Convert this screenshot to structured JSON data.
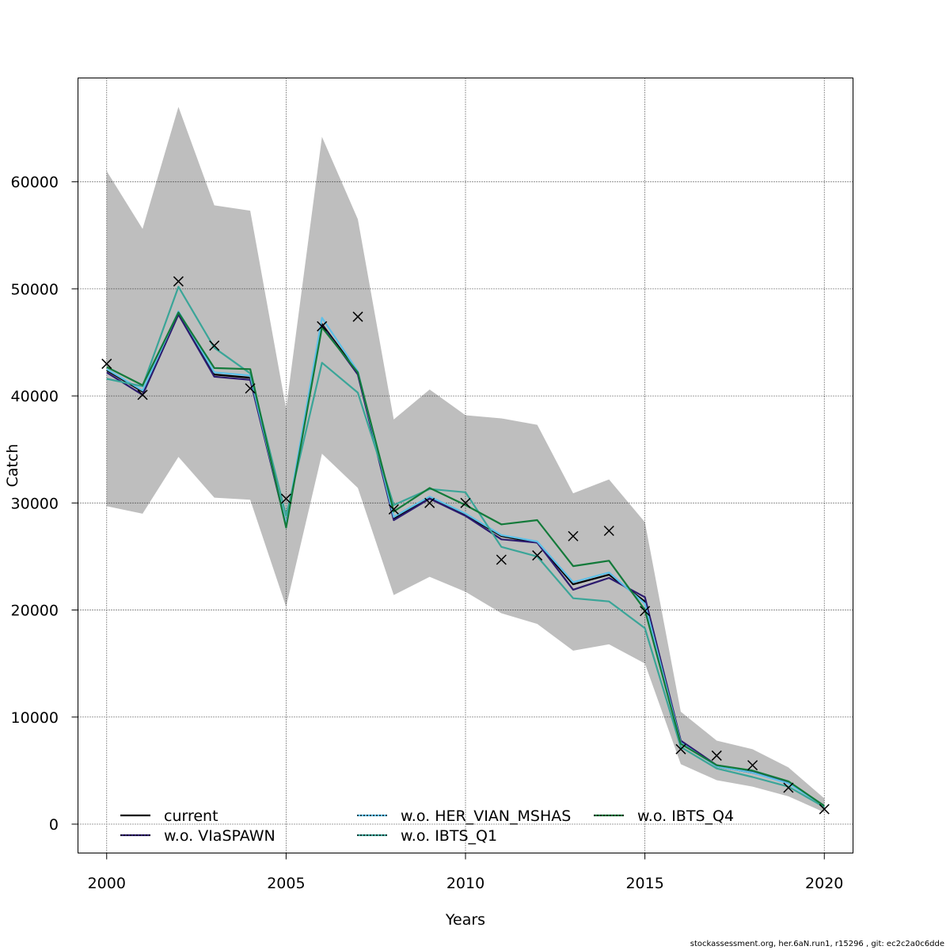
{
  "chart_data": {
    "type": "line",
    "title": "",
    "xlabel": "Years",
    "ylabel": "Catch",
    "xlim": [
      1999.2,
      2020.8
    ],
    "ylim": [
      -2700,
      69700
    ],
    "x_ticks": [
      2000,
      2005,
      2010,
      2015,
      2020
    ],
    "y_ticks": [
      0,
      10000,
      20000,
      30000,
      40000,
      50000,
      60000
    ],
    "grid": true,
    "grid_style": "dotted",
    "legend_position": "bottom",
    "x": [
      2000,
      2001,
      2002,
      2003,
      2004,
      2005,
      2006,
      2007,
      2008,
      2009,
      2010,
      2011,
      2012,
      2013,
      2014,
      2015,
      2016,
      2017,
      2018,
      2019,
      2020
    ],
    "confidence_band": {
      "color": "#bebebe",
      "lower": [
        29700,
        29000,
        34300,
        30500,
        30300,
        20300,
        34600,
        31400,
        21400,
        23100,
        21700,
        19700,
        18700,
        16200,
        16800,
        15000,
        5600,
        4100,
        3500,
        2600,
        1100
      ],
      "upper": [
        61000,
        55600,
        67000,
        57800,
        57300,
        38800,
        64200,
        56500,
        37800,
        40600,
        38200,
        37900,
        37300,
        30900,
        32200,
        28200,
        10500,
        7800,
        7000,
        5300,
        2400
      ]
    },
    "series": [
      {
        "name": "current",
        "color": "#000000",
        "dash": "solid",
        "values": [
          42400,
          40400,
          47800,
          42000,
          41700,
          27900,
          46700,
          42200,
          28500,
          30500,
          28900,
          26900,
          26300,
          22400,
          23300,
          20800,
          7700,
          5400,
          4800,
          3900,
          1700
        ]
      },
      {
        "name": "w.o. VIaSPAWN",
        "color": "#2c1a6e",
        "dash": "solid",
        "overlay_color": "#000000",
        "values": [
          42200,
          40100,
          47600,
          41800,
          41500,
          27900,
          46600,
          42000,
          28400,
          30400,
          28800,
          26600,
          26300,
          21900,
          23000,
          21200,
          7800,
          5500,
          4900,
          3900,
          1700
        ]
      },
      {
        "name": "w.o. HER_VIAN_MSHAS",
        "color": "#5ec0e8",
        "dash": "solid",
        "overlay_color": "#000000",
        "values": [
          42500,
          40500,
          47900,
          42200,
          41900,
          28000,
          47300,
          42300,
          28700,
          30600,
          29000,
          27000,
          26400,
          22600,
          23500,
          20600,
          7600,
          5400,
          4800,
          3800,
          1700
        ]
      },
      {
        "name": "w.o. IBTS_Q1",
        "color": "#3aa598",
        "dash": "solid",
        "overlay_color": "#000000",
        "values": [
          41600,
          40900,
          50200,
          44500,
          42100,
          28800,
          43100,
          40300,
          29800,
          31300,
          31000,
          25900,
          25000,
          21100,
          20800,
          18300,
          7200,
          5200,
          4400,
          3500,
          1600
        ]
      },
      {
        "name": "w.o. IBTS_Q4",
        "color": "#137a3a",
        "dash": "solid",
        "overlay_color": "#000000",
        "values": [
          42700,
          41000,
          47800,
          42600,
          42500,
          27700,
          46400,
          42200,
          29200,
          31400,
          29800,
          28000,
          28400,
          24100,
          24600,
          20000,
          7500,
          5500,
          5000,
          4000,
          1700
        ]
      }
    ],
    "observations": {
      "marker": "x",
      "color": "#000000",
      "values": [
        43000,
        40100,
        50700,
        44700,
        40700,
        30400,
        46500,
        47400,
        29400,
        30000,
        30000,
        24700,
        25100,
        26900,
        27400,
        19900,
        7000,
        6400,
        5500,
        3400,
        1400
      ]
    }
  },
  "footer": {
    "text": "stockassessment.org, her.6aN.run1, r15296 , git: ec2c2a0c6dde"
  }
}
